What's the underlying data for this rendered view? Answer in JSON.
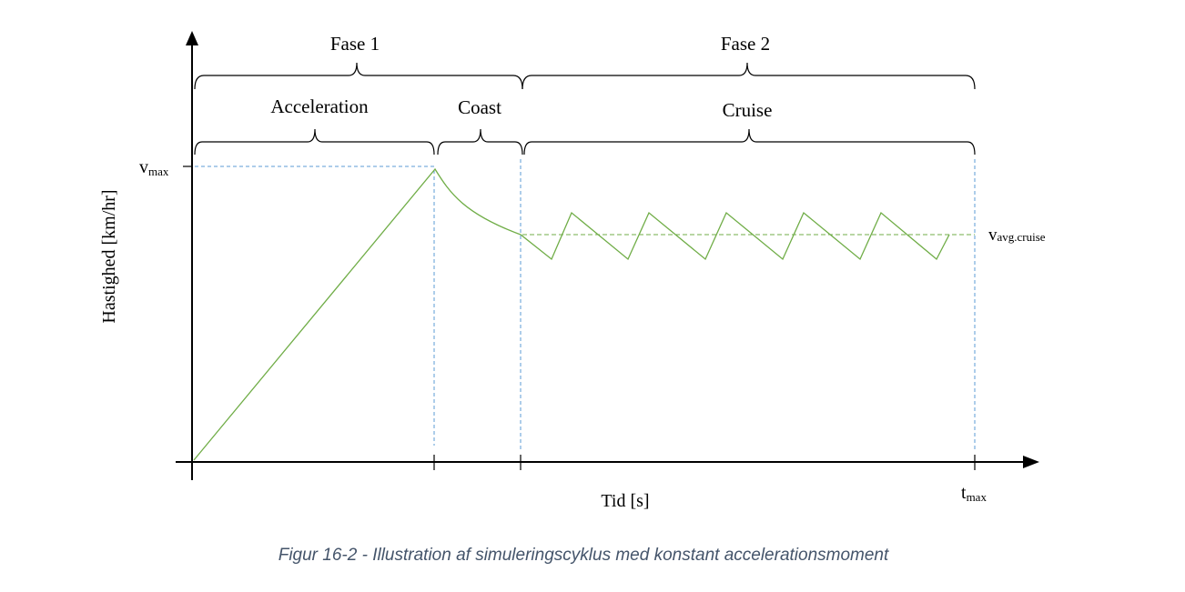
{
  "phases": {
    "fase1": "Fase 1",
    "fase2": "Fase 2"
  },
  "segments": {
    "acceleration": "Acceleration",
    "coast": "Coast",
    "cruise": "Cruise"
  },
  "axes": {
    "y_label": "Hastighed [km/hr]",
    "x_label": "Tid [s]",
    "vmax_main": "v",
    "vmax_sub": "max",
    "tmax_main": "t",
    "tmax_sub": "max",
    "vavg_main": "v",
    "vavg_sub": "avg.cruise"
  },
  "caption": "Figur 16-2 - Illustration af simuleringscyklus med konstant accelerationsmoment",
  "colors": {
    "curve": "#70ad47",
    "guide_lines": "#5b9bd5",
    "axis": "#000000",
    "caption": "#44546a"
  }
}
